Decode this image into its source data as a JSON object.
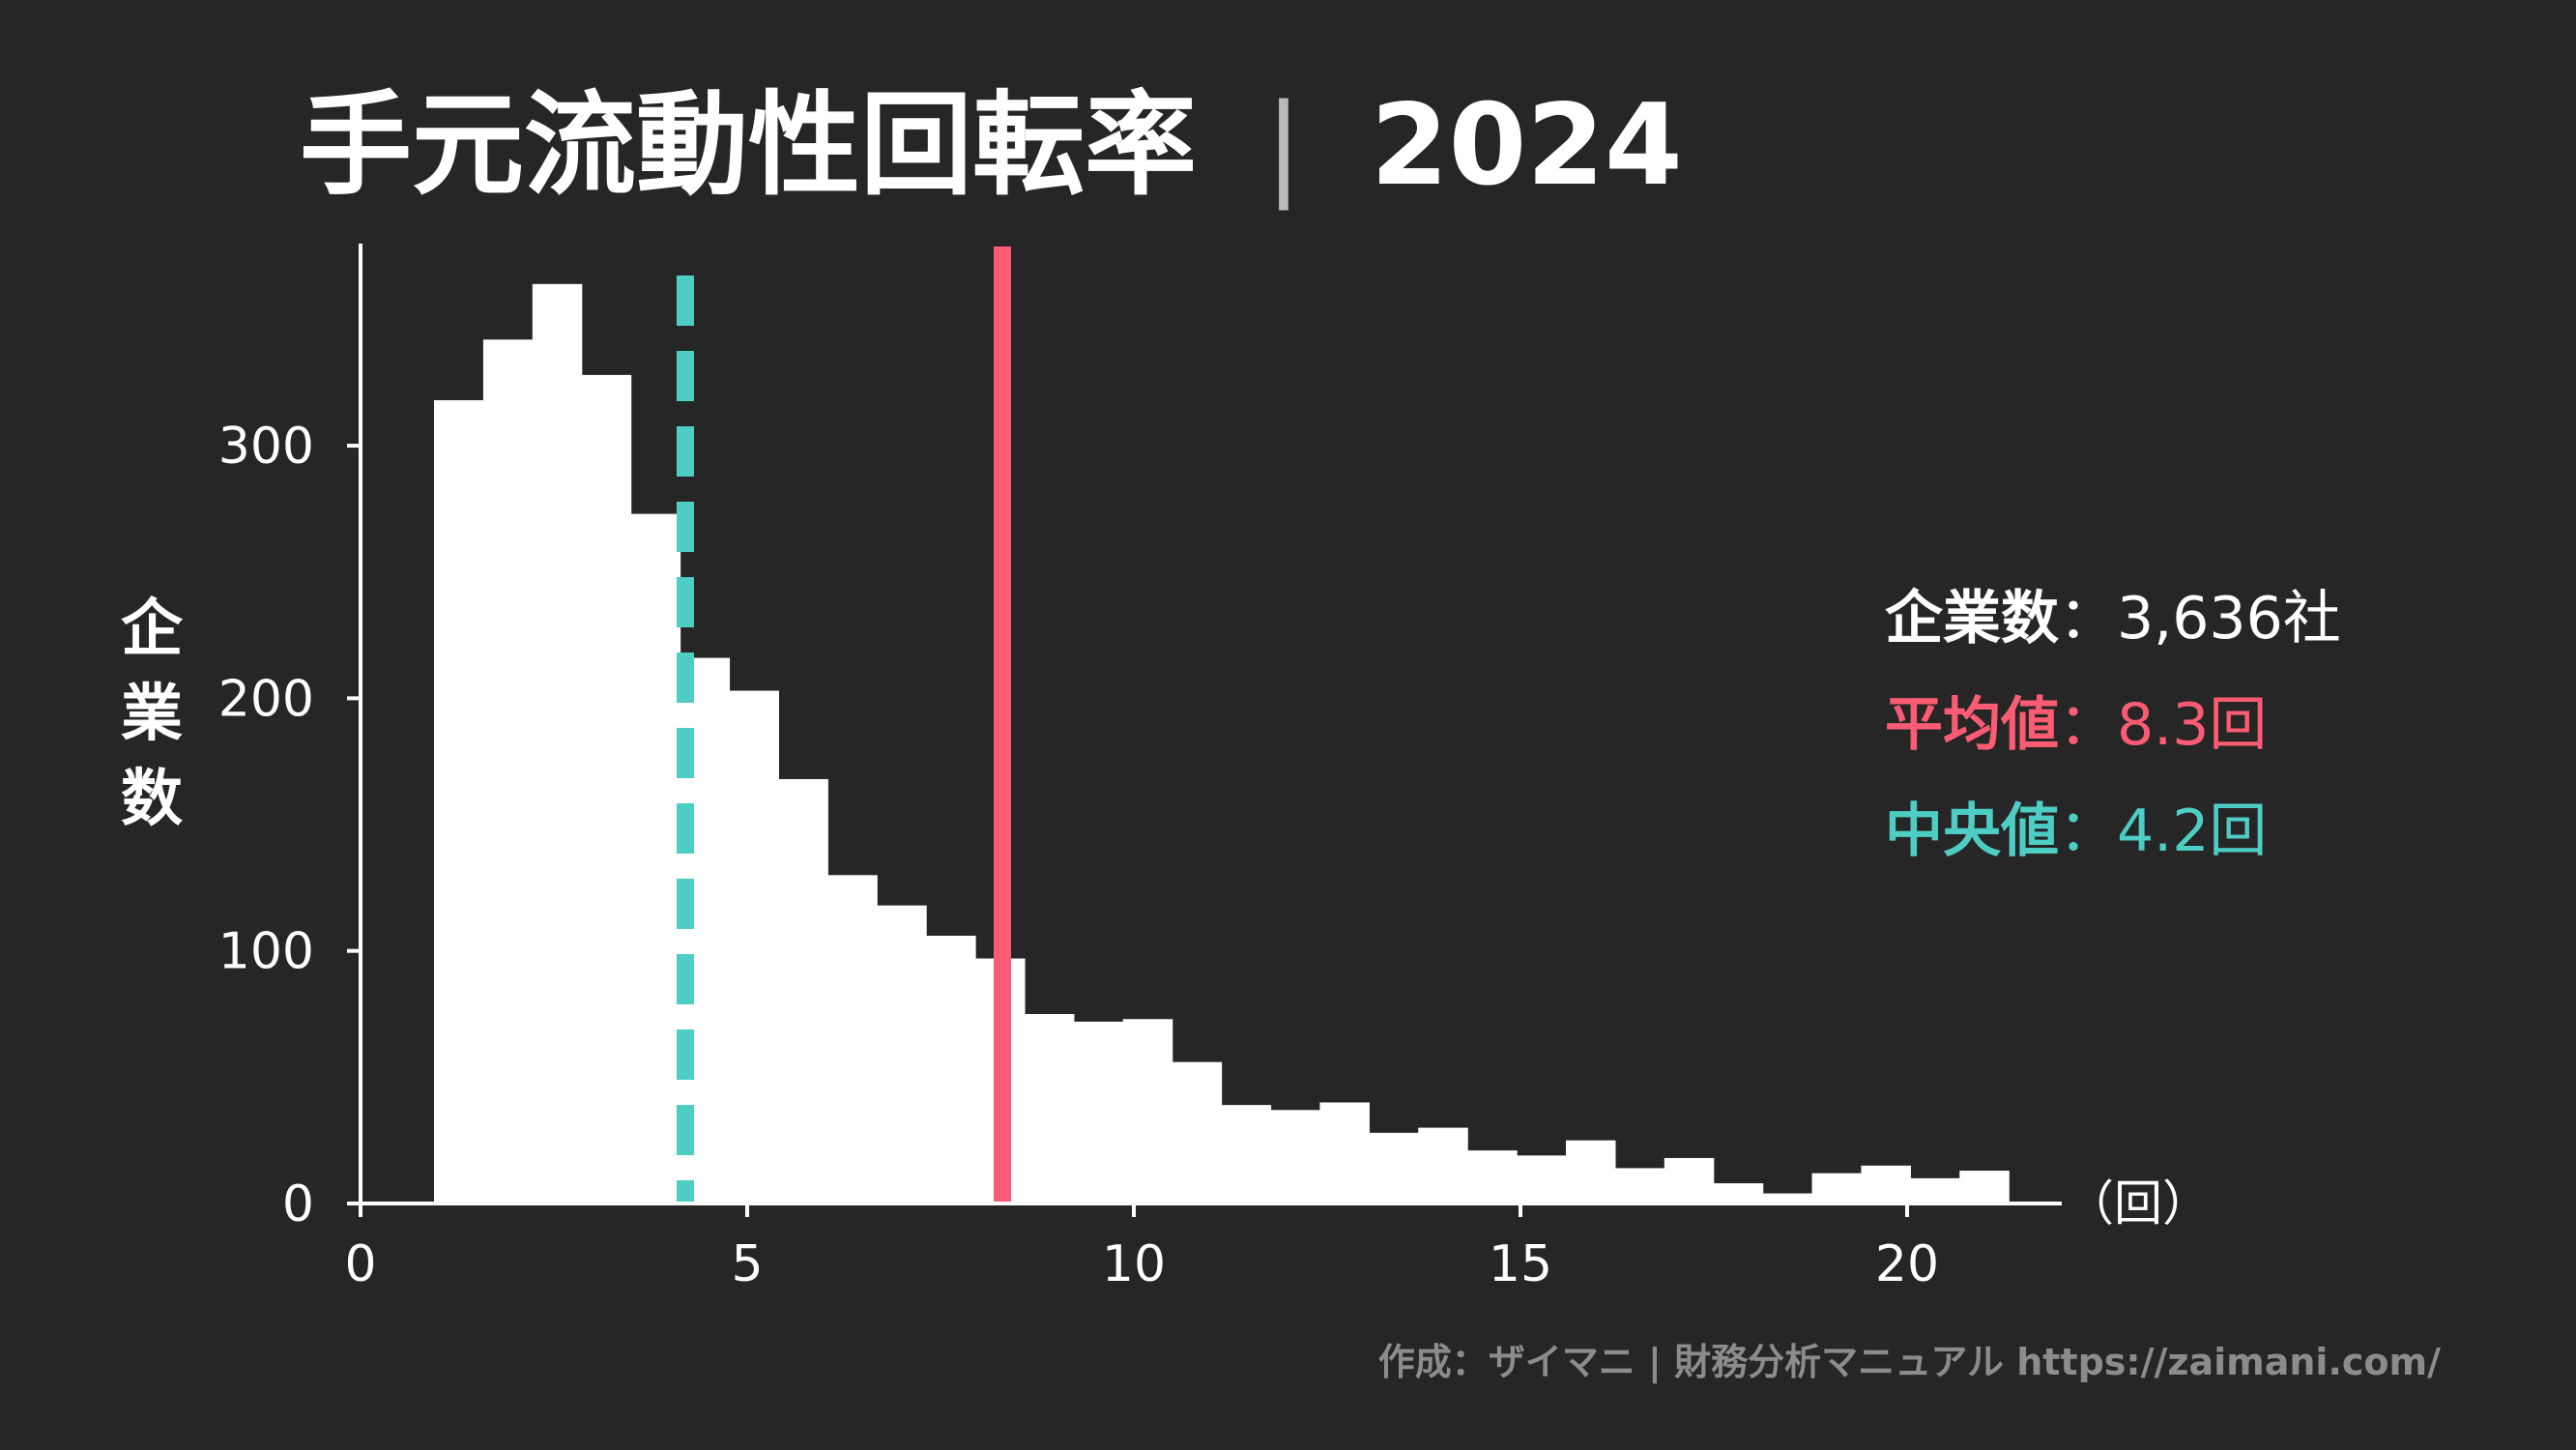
{
  "title": "手元流動性回転率",
  "title_separator": "|",
  "year": "2024",
  "colors": {
    "background": "#262626",
    "bars": "#ffffff",
    "mean": "#fc5c73",
    "median": "#4ecdc4",
    "credit": "#8c8c8c"
  },
  "chart_data": {
    "type": "bar",
    "subtype": "histogram",
    "title": "手元流動性回転率|2024",
    "ylabel": "企業数",
    "xunit": "（回）",
    "xlim": [
      0,
      22
    ],
    "ylim": [
      0,
      380
    ],
    "xticks": [
      0,
      5,
      10,
      15,
      20
    ],
    "yticks": [
      0,
      100,
      200,
      300
    ],
    "bin_width": 0.6364,
    "bin_start": 0.95,
    "counts": [
      318,
      342,
      364,
      328,
      273,
      216,
      203,
      168,
      130,
      118,
      106,
      97,
      75,
      72,
      73,
      56,
      39,
      37,
      40,
      28,
      30,
      21,
      19,
      25,
      14,
      18,
      8,
      4,
      12,
      15,
      10,
      13
    ],
    "grid": false,
    "reference_lines": [
      {
        "name": "平均値",
        "x": 8.3,
        "style": "solid"
      },
      {
        "name": "中央値",
        "x": 4.2,
        "style": "dashed"
      }
    ]
  },
  "stats": {
    "companies_label": "企業数",
    "companies_value": "：3,636社",
    "mean_label": "平均値",
    "mean_value": "：8.3回",
    "median_label": "中央値",
    "median_value": "：4.2回"
  },
  "credit": "作成：ザイマニ | 財務分析マニュアル https://zaimani.com/"
}
